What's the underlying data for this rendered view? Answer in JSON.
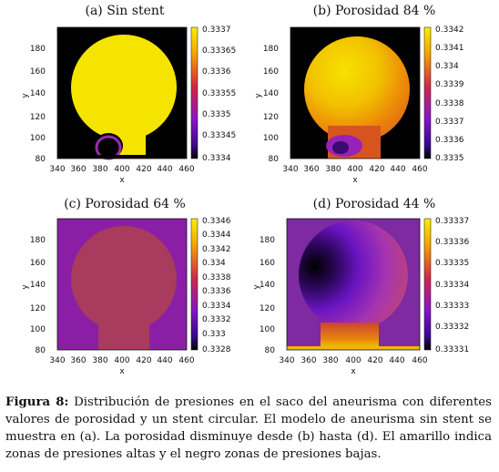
{
  "panels": [
    {
      "title": "(a) Sin stent",
      "xlabel": "x",
      "ylabel": "y",
      "x_ticks": [
        "340",
        "360",
        "380",
        "400",
        "420",
        "440",
        "460"
      ],
      "y_ticks": [
        "80",
        "100",
        "120",
        "140",
        "160",
        "180"
      ],
      "colorbar_ticks": [
        "0.3337",
        "0.33365",
        "0.3336",
        "0.33355",
        "0.3335",
        "0.33345",
        "0.3334"
      ]
    },
    {
      "title": "(b) Porosidad 84 %",
      "xlabel": "x",
      "ylabel": "y",
      "x_ticks": [
        "340",
        "360",
        "380",
        "400",
        "420",
        "440",
        "460"
      ],
      "y_ticks": [
        "80",
        "100",
        "120",
        "140",
        "160",
        "180"
      ],
      "colorbar_ticks": [
        "0.3342",
        "0.3341",
        "0.334",
        "0.3339",
        "0.3338",
        "0.3337",
        "0.3336",
        "0.3335"
      ]
    },
    {
      "title": "(c) Porosidad 64 %",
      "xlabel": "x",
      "ylabel": "y",
      "x_ticks": [
        "340",
        "360",
        "380",
        "400",
        "420",
        "440",
        "460"
      ],
      "y_ticks": [
        "80",
        "100",
        "120",
        "140",
        "160",
        "180"
      ],
      "colorbar_ticks": [
        "0.3346",
        "0.3344",
        "0.3342",
        "0.334",
        "0.3338",
        "0.3336",
        "0.3334",
        "0.3332",
        "0.333",
        "0.3328"
      ]
    },
    {
      "title": "(d) Porosidad 44 %",
      "xlabel": "x",
      "ylabel": "y",
      "x_ticks": [
        "340",
        "360",
        "380",
        "400",
        "420",
        "440",
        "460"
      ],
      "y_ticks": [
        "80",
        "100",
        "120",
        "140",
        "160",
        "180"
      ],
      "colorbar_ticks": [
        "0.33337",
        "0.33336",
        "0.33335",
        "0.33334",
        "0.33333",
        "0.33332",
        "0.33331"
      ]
    }
  ],
  "caption": {
    "label": "Figura 8:",
    "text": " Distribución de presiones en el saco del aneurisma con diferentes valores de porosidad y un stent circular. El modelo de aneurisma sin stent se muestra en (a). La porosidad disminuye desde (b) hasta (d). El amarillo indica zonas de presiones altas y el negro zonas de presiones bajas."
  },
  "colors": {
    "yellow": "#f5e400",
    "background_a": "#000000",
    "background_c": "#8a1fa6",
    "background_d": "#6a1d9e"
  }
}
